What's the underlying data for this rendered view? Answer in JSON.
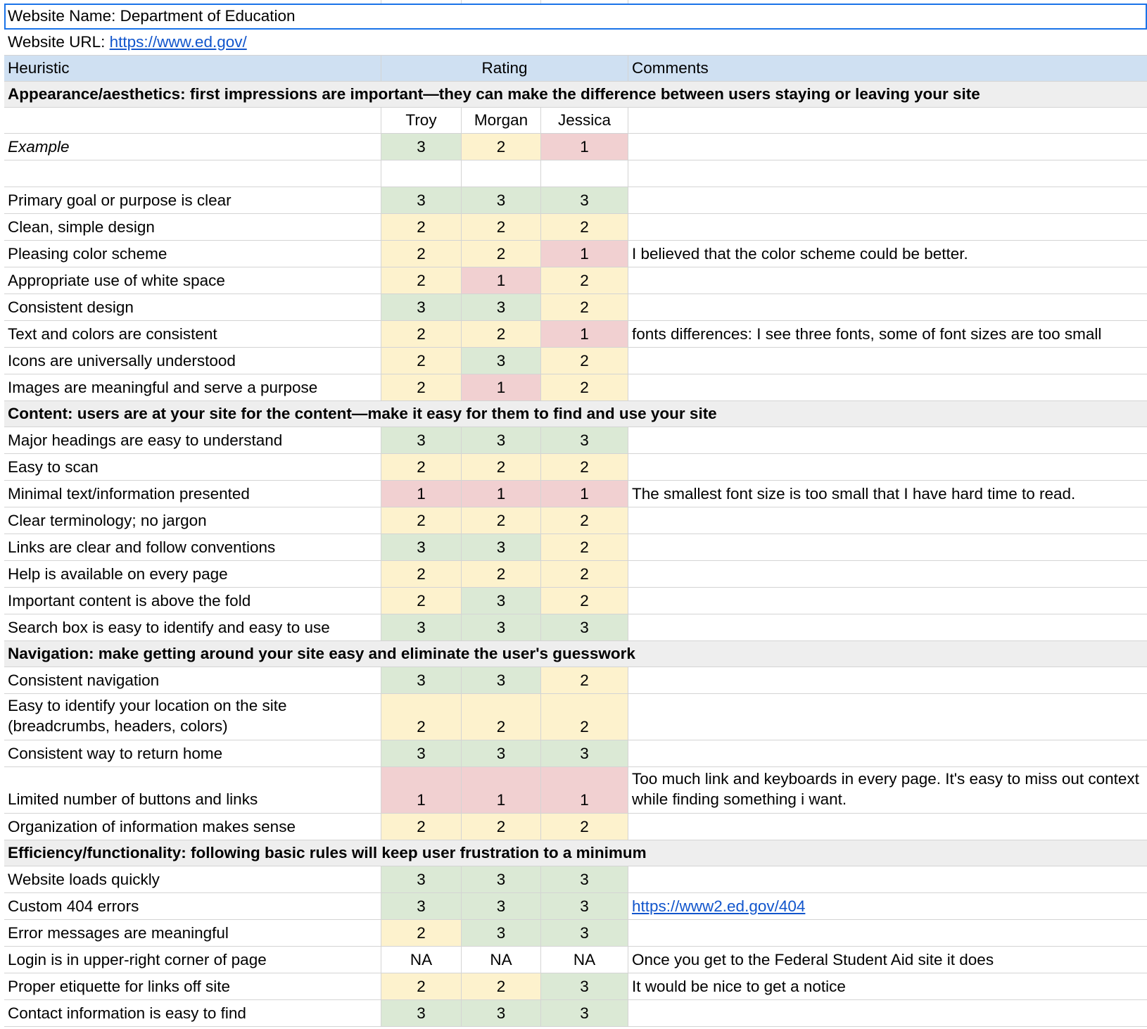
{
  "website_name": "Website Name: Department of Education",
  "website_url_label": "Website URL: ",
  "website_url": "https://www.ed.gov/",
  "headers": {
    "heuristic": "Heuristic",
    "rating": "Rating",
    "comments": "Comments"
  },
  "raters": [
    "Troy",
    "Morgan",
    "Jessica"
  ],
  "colors": {
    "green": "#dbe9d5",
    "yellow": "#fdf2cd",
    "red": "#f1d0d1",
    "header_bg": "#cfe0f2",
    "section_bg": "#eeeeee",
    "link": "#1155cc"
  },
  "sections": [
    {
      "title": "Appearance/aesthetics: first impressions are important—they can make the difference between users staying or leaving your site",
      "show_raters": true,
      "rows": [
        {
          "label": "Example",
          "italic": true,
          "ratings": [
            "3",
            "2",
            "1"
          ],
          "comment": ""
        },
        {
          "label": "",
          "blank": true,
          "ratings": [
            "",
            "",
            ""
          ],
          "comment": ""
        },
        {
          "label": "Primary goal or purpose is clear",
          "ratings": [
            "3",
            "3",
            "3"
          ],
          "comment": ""
        },
        {
          "label": "Clean, simple design",
          "ratings": [
            "2",
            "2",
            "2"
          ],
          "comment": ""
        },
        {
          "label": "Pleasing color scheme",
          "ratings": [
            "2",
            "2",
            "1"
          ],
          "comment": "I believed that the color scheme could be better."
        },
        {
          "label": "Appropriate use of white space",
          "ratings": [
            "2",
            "1",
            "2"
          ],
          "comment": ""
        },
        {
          "label": "Consistent design",
          "ratings": [
            "3",
            "3",
            "2"
          ],
          "comment": ""
        },
        {
          "label": "Text and colors are consistent",
          "ratings": [
            "2",
            "2",
            "1"
          ],
          "comment": "fonts differences: I see three fonts, some of font sizes are too small"
        },
        {
          "label": "Icons are universally understood",
          "ratings": [
            "2",
            "3",
            "2"
          ],
          "comment": ""
        },
        {
          "label": "Images are meaningful and serve a purpose",
          "ratings": [
            "2",
            "1",
            "2"
          ],
          "comment": ""
        }
      ]
    },
    {
      "title": "Content: users are at your site for the content—make it easy for them to find and use your site",
      "rows": [
        {
          "label": "Major headings are easy to understand",
          "ratings": [
            "3",
            "3",
            "3"
          ],
          "comment": ""
        },
        {
          "label": "Easy to scan",
          "ratings": [
            "2",
            "2",
            "2"
          ],
          "comment": ""
        },
        {
          "label": "Minimal text/information presented",
          "ratings": [
            "1",
            "1",
            "1"
          ],
          "comment": "The smallest font size is too small that I have hard time to read."
        },
        {
          "label": "Clear terminology; no jargon",
          "ratings": [
            "2",
            "2",
            "2"
          ],
          "comment": ""
        },
        {
          "label": "Links are clear and follow conventions",
          "ratings": [
            "3",
            "3",
            "2"
          ],
          "comment": ""
        },
        {
          "label": "Help is available on every page",
          "ratings": [
            "2",
            "2",
            "2"
          ],
          "comment": ""
        },
        {
          "label": "Important content is above the fold",
          "ratings": [
            "2",
            "3",
            "2"
          ],
          "comment": ""
        },
        {
          "label": "Search box is easy to identify and easy to use",
          "ratings": [
            "3",
            "3",
            "3"
          ],
          "comment": ""
        }
      ]
    },
    {
      "title": "Navigation: make getting around your site easy and eliminate the user's guesswork",
      "rows": [
        {
          "label": "Consistent navigation",
          "ratings": [
            "3",
            "3",
            "2"
          ],
          "comment": ""
        },
        {
          "label": "Easy to identify your location on the site (breadcrumbs, headers, colors)",
          "double": true,
          "ratings": [
            "2",
            "2",
            "2"
          ],
          "comment": ""
        },
        {
          "label": "Consistent way to return home",
          "ratings": [
            "3",
            "3",
            "3"
          ],
          "comment": ""
        },
        {
          "label": "Limited number of buttons and links",
          "double": true,
          "ratings": [
            "1",
            "1",
            "1"
          ],
          "comment": "Too much link and keyboards in every page. It's easy to miss out context while finding something i want."
        },
        {
          "label": "Organization of information makes sense",
          "ratings": [
            "2",
            "2",
            "2"
          ],
          "comment": ""
        }
      ]
    },
    {
      "title": "Efficiency/functionality: following basic rules will keep user frustration to a minimum",
      "rows": [
        {
          "label": "Website loads quickly",
          "ratings": [
            "3",
            "3",
            "3"
          ],
          "comment": ""
        },
        {
          "label": "Custom 404 errors",
          "ratings": [
            "3",
            "3",
            "3"
          ],
          "comment": "https://www2.ed.gov/404",
          "comment_link": true
        },
        {
          "label": "Error messages are meaningful",
          "ratings": [
            "2",
            "3",
            "3"
          ],
          "comment": ""
        },
        {
          "label": "Login is in upper-right corner of page",
          "ratings": [
            "NA",
            "NA",
            "NA"
          ],
          "comment": "Once you get to the Federal Student Aid site it does"
        },
        {
          "label": "Proper etiquette for links off site",
          "ratings": [
            "2",
            "2",
            "3"
          ],
          "comment": "It would be nice to get a notice"
        },
        {
          "label": "Contact information is easy to find",
          "ratings": [
            "3",
            "3",
            "3"
          ],
          "comment": ""
        }
      ]
    }
  ]
}
